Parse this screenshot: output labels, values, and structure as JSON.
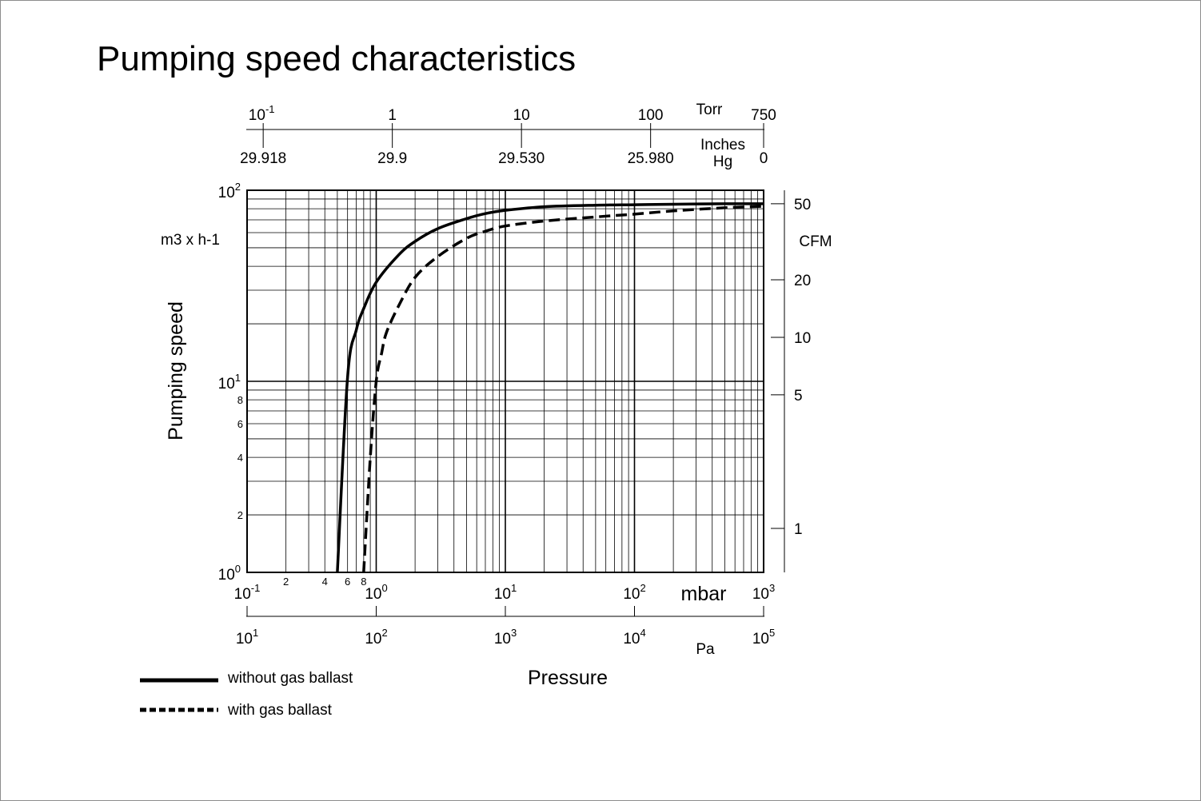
{
  "chart_data": {
    "type": "line",
    "title": "Pumping speed characteristics",
    "xlabel": "Pressure",
    "ylabel": "Pumping speed",
    "x_scale": "log",
    "y_scale": "log",
    "xlim": [
      0.1,
      1000
    ],
    "ylim": [
      1,
      100
    ],
    "x_unit": "mbar",
    "y_unit": "m3 x h-1",
    "grid": true,
    "legend_position": "bottom-left",
    "x_major_ticks": [
      {
        "value": 0.1,
        "base": "10",
        "exp": "-1"
      },
      {
        "value": 1,
        "base": "10",
        "exp": "0"
      },
      {
        "value": 10,
        "base": "10",
        "exp": "1"
      },
      {
        "value": 100,
        "base": "10",
        "exp": "2"
      },
      {
        "value": 1000,
        "base": "10",
        "exp": "3"
      }
    ],
    "x_minor_tick_labels": [
      {
        "value": 0.2,
        "label": "2"
      },
      {
        "value": 0.4,
        "label": "4"
      },
      {
        "value": 0.6,
        "label": "6"
      },
      {
        "value": 0.8,
        "label": "8"
      }
    ],
    "y_major_ticks": [
      {
        "value": 1,
        "base": "10",
        "exp": "0"
      },
      {
        "value": 10,
        "base": "10",
        "exp": "1"
      },
      {
        "value": 100,
        "base": "10",
        "exp": "2"
      }
    ],
    "y_minor_tick_labels": [
      {
        "value": 2,
        "label": "2"
      },
      {
        "value": 4,
        "label": "4"
      },
      {
        "value": 6,
        "label": "6"
      },
      {
        "value": 8,
        "label": "8"
      }
    ],
    "secondary_axes": {
      "torr": {
        "unit": "Torr",
        "ticks": [
          {
            "value": 0.1333,
            "base": "10",
            "exp": "-1",
            "label": ""
          },
          {
            "value": 1.333,
            "base": "",
            "exp": "",
            "label": "1"
          },
          {
            "value": 13.33,
            "base": "",
            "exp": "",
            "label": "10"
          },
          {
            "value": 133.3,
            "base": "",
            "exp": "",
            "label": "100"
          },
          {
            "value": 1000,
            "base": "",
            "exp": "",
            "label": "750"
          }
        ]
      },
      "inches_hg": {
        "unit_line1": "Inches",
        "unit_line2": "Hg",
        "ticks": [
          {
            "value": 0.1333,
            "label": "29.918"
          },
          {
            "value": 1.333,
            "label": "29.9"
          },
          {
            "value": 13.33,
            "label": "29.530"
          },
          {
            "value": 133.3,
            "label": "25.980"
          },
          {
            "value": 1000,
            "label": "0"
          }
        ]
      },
      "pa": {
        "unit": "Pa",
        "ticks": [
          {
            "value": 0.1,
            "base": "10",
            "exp": "1"
          },
          {
            "value": 1,
            "base": "10",
            "exp": "2"
          },
          {
            "value": 10,
            "base": "10",
            "exp": "3"
          },
          {
            "value": 100,
            "base": "10",
            "exp": "4"
          },
          {
            "value": 1000,
            "base": "10",
            "exp": "5"
          }
        ]
      },
      "cfm": {
        "unit": "CFM",
        "ticks": [
          {
            "value": 50,
            "label": "50"
          },
          {
            "value": 20,
            "label": "20"
          },
          {
            "value": 10,
            "label": "10"
          },
          {
            "value": 5,
            "label": "5"
          },
          {
            "value": 1,
            "label": "1"
          }
        ]
      }
    },
    "series": [
      {
        "name": "without gas ballast",
        "style": "solid",
        "color": "#000000",
        "points": [
          [
            0.5,
            1.0
          ],
          [
            0.6,
            10.5
          ],
          [
            0.7,
            18.5
          ],
          [
            0.8,
            24.0
          ],
          [
            1.0,
            33.0
          ],
          [
            1.5,
            46.0
          ],
          [
            2.0,
            54.0
          ],
          [
            3.0,
            63.0
          ],
          [
            5.0,
            71.0
          ],
          [
            7.0,
            75.5
          ],
          [
            10.0,
            78.5
          ],
          [
            20.0,
            82.0
          ],
          [
            50.0,
            83.5
          ],
          [
            100.0,
            84.0
          ],
          [
            200.0,
            84.5
          ],
          [
            500.0,
            85.0
          ],
          [
            1000.0,
            85.0
          ]
        ]
      },
      {
        "name": "with gas ballast",
        "style": "dashed",
        "color": "#000000",
        "points": [
          [
            0.8,
            1.0
          ],
          [
            0.9,
            4.0
          ],
          [
            1.0,
            10.0
          ],
          [
            1.1,
            14.0
          ],
          [
            1.2,
            18.0
          ],
          [
            1.5,
            25.0
          ],
          [
            2.0,
            35.0
          ],
          [
            3.0,
            45.0
          ],
          [
            5.0,
            56.0
          ],
          [
            7.0,
            61.0
          ],
          [
            10.0,
            65.0
          ],
          [
            20.0,
            69.0
          ],
          [
            50.0,
            72.5
          ],
          [
            100.0,
            75.0
          ],
          [
            200.0,
            78.0
          ],
          [
            500.0,
            81.0
          ],
          [
            1000.0,
            82.5
          ]
        ]
      }
    ]
  }
}
